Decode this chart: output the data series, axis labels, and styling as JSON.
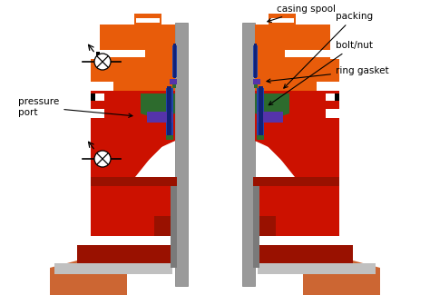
{
  "background_color": "#ffffff",
  "labels": {
    "casing_spool": "casing spool",
    "packing": "packing",
    "bolt_nut": "bolt/nut",
    "ring_gasket": "ring gasket",
    "pressure_port": "pressure\nport"
  },
  "colors": {
    "orange": "#E85C0A",
    "red": "#CC1100",
    "dark_red": "#991100",
    "blue": "#2244AA",
    "dark_blue": "#112277",
    "green": "#2D6B2D",
    "purple": "#5533AA",
    "gray": "#7A7A7A",
    "light_gray": "#C0C0C0",
    "white": "#FFFFFF",
    "black": "#000000",
    "brown": "#CC6633",
    "pipe_gray": "#9A9A9A"
  },
  "figsize": [
    4.74,
    3.25
  ],
  "dpi": 100
}
